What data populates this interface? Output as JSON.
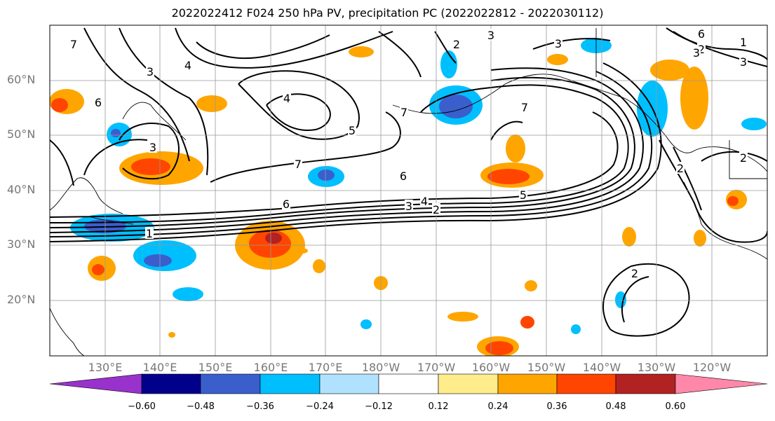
{
  "title": "2022022412 F024 250 hPa PV, precipitation PC (2022022812 - 2022030112)",
  "lat_labels": [
    "60°N",
    "50°N",
    "40°N",
    "30°N",
    "20°N"
  ],
  "lon_labels": [
    "130°E",
    "140°E",
    "150°E",
    "160°E",
    "170°E",
    "180°W",
    "170°W",
    "160°W",
    "150°W",
    "140°W",
    "130°W",
    "120°W"
  ],
  "colorbar": {
    "ticks": [
      "−0.60",
      "−0.48",
      "−0.36",
      "−0.24",
      "−0.12",
      "0.12",
      "0.24",
      "0.36",
      "0.48",
      "0.60"
    ],
    "colors": [
      "#9932CC",
      "#00008B",
      "#3A5FCD",
      "#00BFFF",
      "#B0E2FF",
      "#FFFFFF",
      "#FFEC8B",
      "#FFA500",
      "#FF4500",
      "#B22222",
      "#FF88AA"
    ]
  },
  "contour_labels": [
    "7",
    "3",
    "4",
    "6",
    "3",
    "4",
    "5",
    "7",
    "3",
    "2",
    "3",
    "7",
    "6",
    "4",
    "3",
    "2",
    "5",
    "6",
    "7",
    "1",
    "2",
    "3",
    "2",
    "1",
    "2",
    "6",
    "3",
    "2"
  ]
}
